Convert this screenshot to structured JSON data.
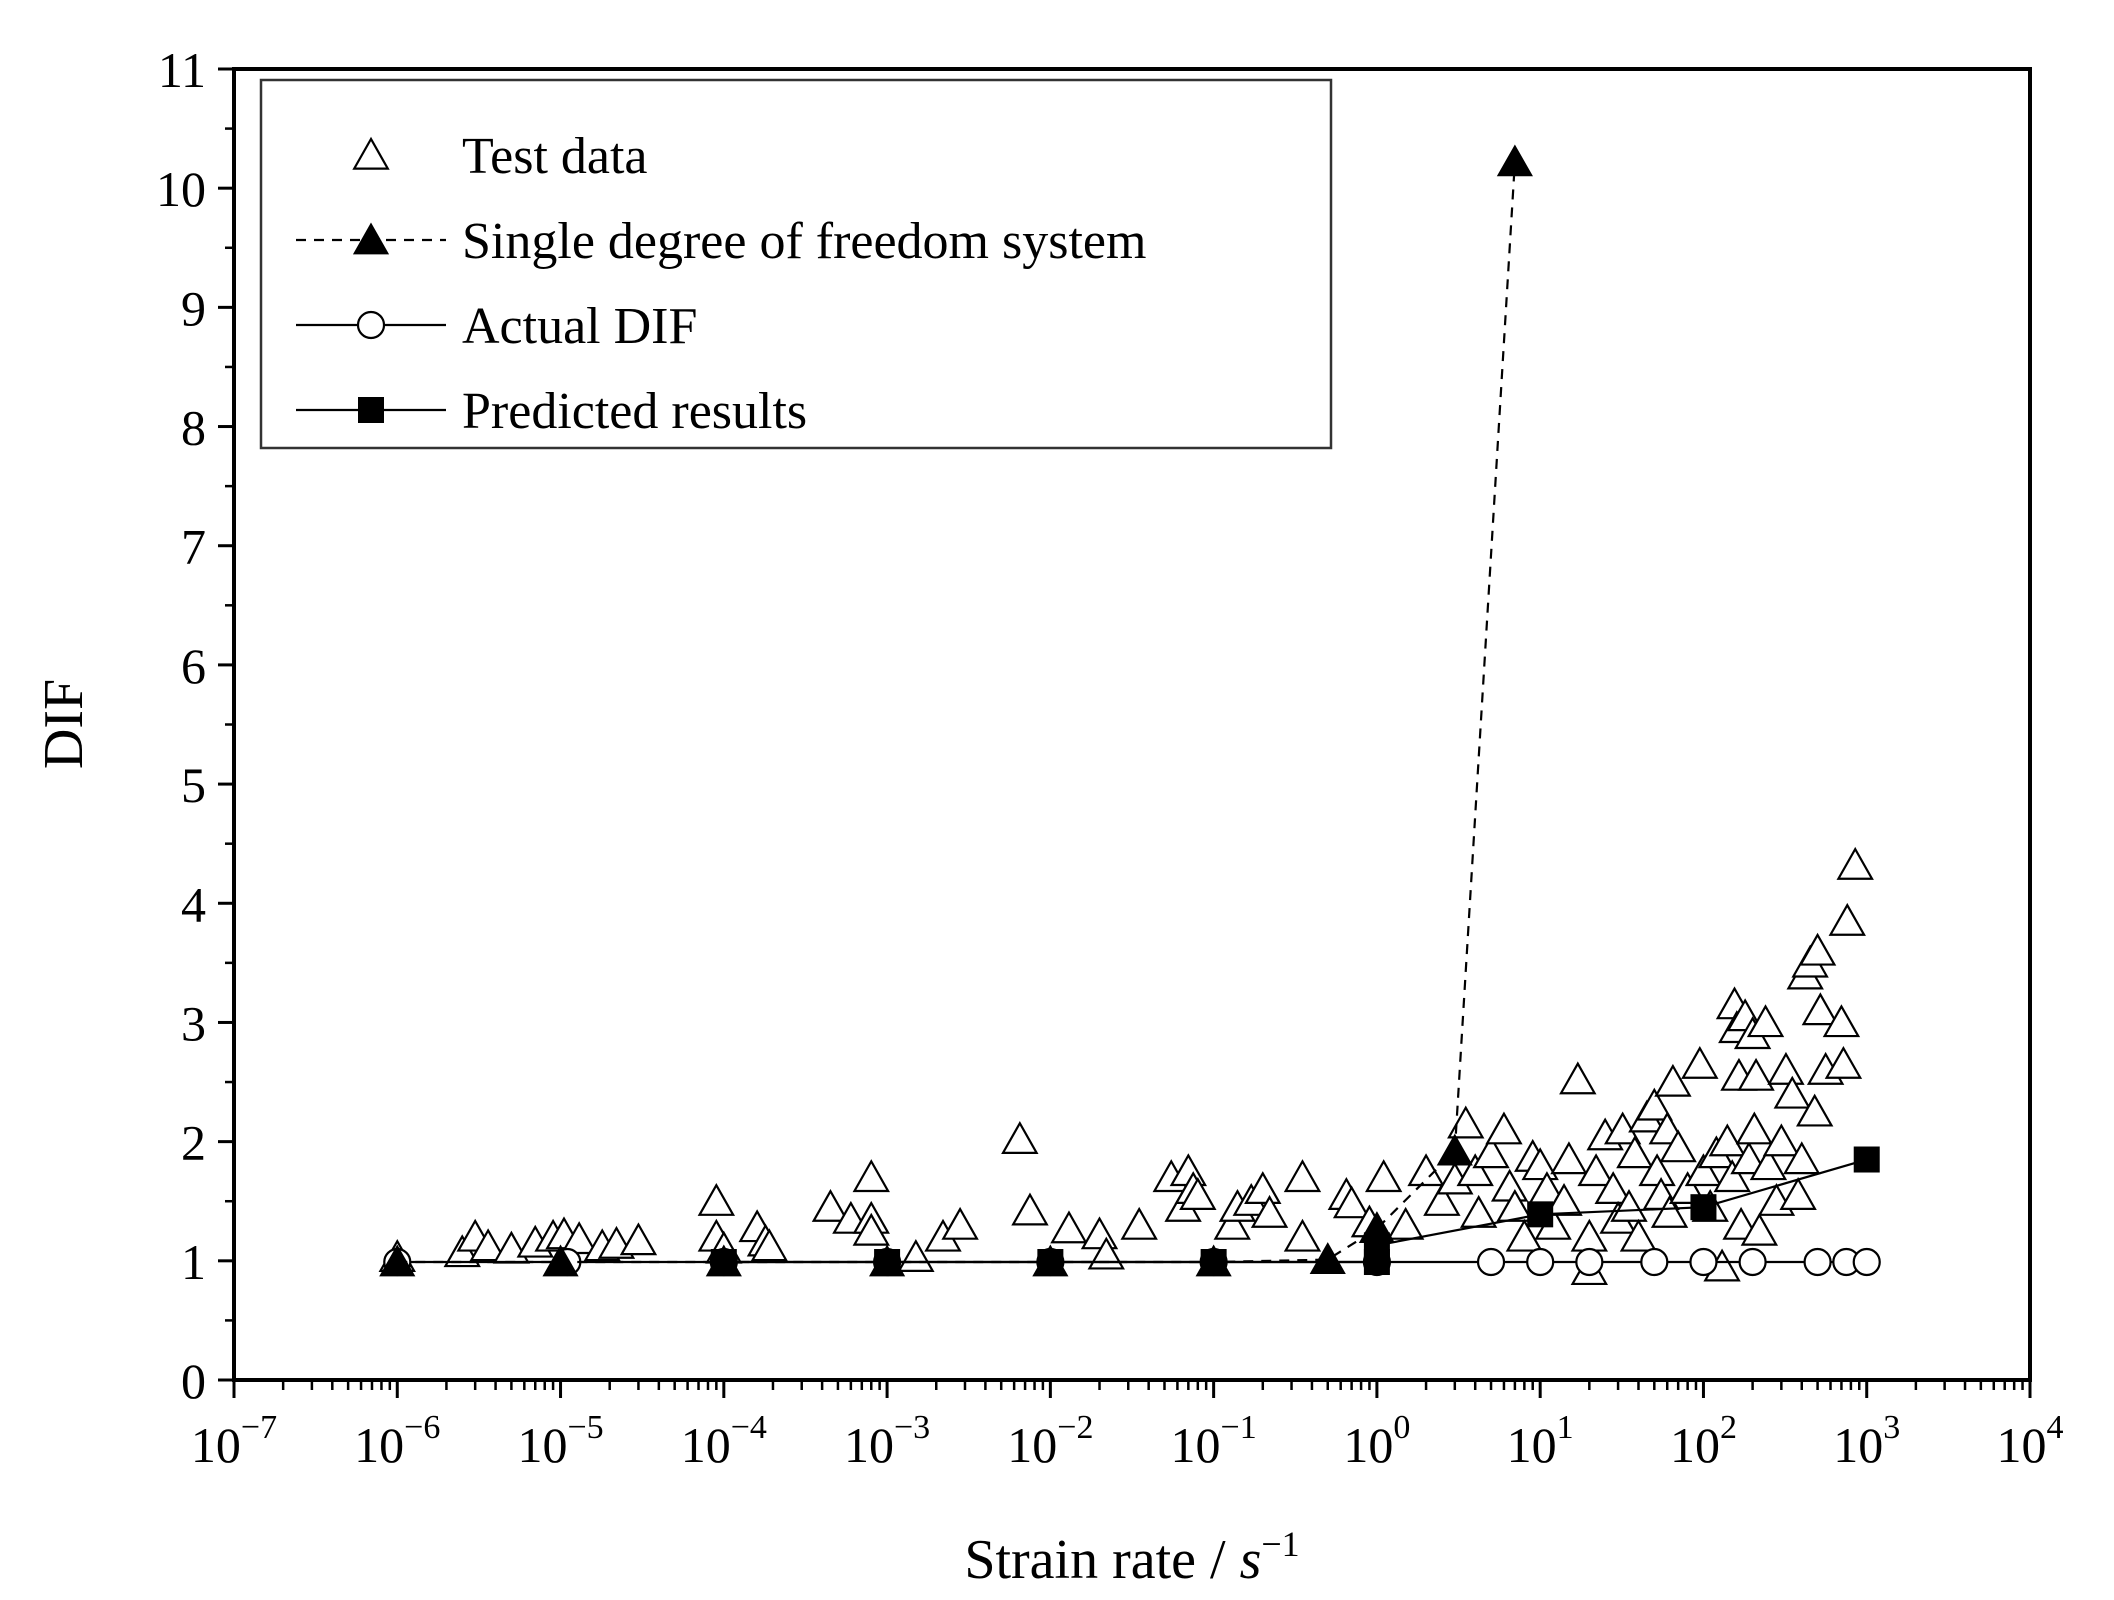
{
  "chart_data": {
    "type": "scatter",
    "title": "",
    "xlabel": "Strain rate / ",
    "xlabel_unit": "s",
    "xlabel_unit_exp": "−1",
    "ylabel": "DIF",
    "x_scale": "log",
    "x_exponent_range": [
      -7,
      4
    ],
    "xlim": [
      1e-07,
      10000
    ],
    "ylim": [
      0,
      11
    ],
    "x_ticks": [
      {
        "base": "10",
        "exp": "−7",
        "value": 1e-07
      },
      {
        "base": "10",
        "exp": "−6",
        "value": 1e-06
      },
      {
        "base": "10",
        "exp": "−5",
        "value": 1e-05
      },
      {
        "base": "10",
        "exp": "−4",
        "value": 0.0001
      },
      {
        "base": "10",
        "exp": "−3",
        "value": 0.001
      },
      {
        "base": "10",
        "exp": "−2",
        "value": 0.01
      },
      {
        "base": "10",
        "exp": "−1",
        "value": 0.1
      },
      {
        "base": "10",
        "exp": "0",
        "value": 1
      },
      {
        "base": "10",
        "exp": "1",
        "value": 10
      },
      {
        "base": "10",
        "exp": "2",
        "value": 100
      },
      {
        "base": "10",
        "exp": "3",
        "value": 1000
      },
      {
        "base": "10",
        "exp": "4",
        "value": 10000
      }
    ],
    "y_ticks": [
      "0",
      "1",
      "2",
      "3",
      "4",
      "5",
      "6",
      "7",
      "8",
      "9",
      "10",
      "11"
    ],
    "legend": {
      "position": "top-left",
      "entries": [
        {
          "label": "Test data",
          "series": "test"
        },
        {
          "label": "Single degree of freedom system",
          "series": "sdof"
        },
        {
          "label": "Actual DIF",
          "series": "actual"
        },
        {
          "label": "Predicted results",
          "series": "predicted"
        }
      ]
    },
    "series": [
      {
        "name": "Test data",
        "marker": "open-triangle",
        "line": "none",
        "points": [
          [
            1e-06,
            1.03
          ],
          [
            2.5e-06,
            1.07
          ],
          [
            3e-06,
            1.2
          ],
          [
            3.6e-06,
            1.12
          ],
          [
            5e-06,
            1.1
          ],
          [
            7e-06,
            1.15
          ],
          [
            9e-06,
            1.2
          ],
          [
            1.05e-05,
            1.22
          ],
          [
            1.3e-05,
            1.18
          ],
          [
            1.8e-05,
            1.12
          ],
          [
            2.2e-05,
            1.14
          ],
          [
            3e-05,
            1.17
          ],
          [
            9e-05,
            1.5
          ],
          [
            9e-05,
            1.2
          ],
          [
            0.0001,
            1.1
          ],
          [
            0.00016,
            1.28
          ],
          [
            0.00018,
            1.16
          ],
          [
            0.00019,
            1.12
          ],
          [
            0.00045,
            1.45
          ],
          [
            0.0006,
            1.35
          ],
          [
            0.0008,
            1.7
          ],
          [
            0.0008,
            1.35
          ],
          [
            0.0008,
            1.25
          ],
          [
            0.0015,
            1.03
          ],
          [
            0.0022,
            1.2
          ],
          [
            0.0028,
            1.3
          ],
          [
            0.0065,
            2.02
          ],
          [
            0.0075,
            1.42
          ],
          [
            0.013,
            1.27
          ],
          [
            0.02,
            1.22
          ],
          [
            0.022,
            1.05
          ],
          [
            0.035,
            1.3
          ],
          [
            0.055,
            1.7
          ],
          [
            0.065,
            1.45
          ],
          [
            0.07,
            1.75
          ],
          [
            0.075,
            1.6
          ],
          [
            0.08,
            1.55
          ],
          [
            0.13,
            1.3
          ],
          [
            0.14,
            1.45
          ],
          [
            0.17,
            1.5
          ],
          [
            0.2,
            1.6
          ],
          [
            0.22,
            1.4
          ],
          [
            0.35,
            1.7
          ],
          [
            0.35,
            1.2
          ],
          [
            0.65,
            1.55
          ],
          [
            0.7,
            1.48
          ],
          [
            0.9,
            1.32
          ],
          [
            1.1,
            1.7
          ],
          [
            1.5,
            1.3
          ],
          [
            2,
            1.75
          ],
          [
            2.5,
            1.5
          ],
          [
            3,
            1.68
          ],
          [
            3.5,
            2.15
          ],
          [
            4,
            1.75
          ],
          [
            4.2,
            1.4
          ],
          [
            5,
            1.9
          ],
          [
            6,
            2.1
          ],
          [
            6.5,
            1.62
          ],
          [
            7,
            1.45
          ],
          [
            8,
            1.2
          ],
          [
            9,
            1.87
          ],
          [
            10,
            1.8
          ],
          [
            11,
            1.6
          ],
          [
            12,
            1.3
          ],
          [
            14,
            1.5
          ],
          [
            15,
            1.85
          ],
          [
            17,
            2.52
          ],
          [
            20,
            1.2
          ],
          [
            20,
            0.92
          ],
          [
            22,
            1.75
          ],
          [
            25,
            2.05
          ],
          [
            28,
            1.6
          ],
          [
            30,
            1.35
          ],
          [
            32,
            2.1
          ],
          [
            35,
            1.45
          ],
          [
            38,
            1.9
          ],
          [
            40,
            1.2
          ],
          [
            45,
            2.2
          ],
          [
            50,
            2.3
          ],
          [
            52,
            1.75
          ],
          [
            55,
            1.55
          ],
          [
            60,
            2.1
          ],
          [
            62,
            1.4
          ],
          [
            65,
            2.5
          ],
          [
            70,
            1.95
          ],
          [
            80,
            1.6
          ],
          [
            95,
            2.65
          ],
          [
            100,
            1.75
          ],
          [
            110,
            1.45
          ],
          [
            120,
            1.9
          ],
          [
            130,
            0.95
          ],
          [
            140,
            2.0
          ],
          [
            150,
            1.7
          ],
          [
            155,
            3.15
          ],
          [
            160,
            2.95
          ],
          [
            165,
            2.55
          ],
          [
            170,
            1.3
          ],
          [
            180,
            3.05
          ],
          [
            190,
            1.85
          ],
          [
            200,
            2.9
          ],
          [
            205,
            2.1
          ],
          [
            210,
            2.55
          ],
          [
            220,
            1.25
          ],
          [
            240,
            3.0
          ],
          [
            250,
            1.8
          ],
          [
            280,
            1.5
          ],
          [
            300,
            2.0
          ],
          [
            320,
            2.6
          ],
          [
            350,
            2.4
          ],
          [
            380,
            1.55
          ],
          [
            400,
            1.85
          ],
          [
            420,
            3.4
          ],
          [
            450,
            3.5
          ],
          [
            480,
            2.25
          ],
          [
            500,
            3.6
          ],
          [
            520,
            3.1
          ],
          [
            560,
            2.6
          ],
          [
            700,
            3.0
          ],
          [
            720,
            2.65
          ],
          [
            760,
            3.85
          ],
          [
            850,
            4.32
          ]
        ]
      },
      {
        "name": "Single degree of freedom system",
        "marker": "filled-triangle",
        "line": "dashed",
        "points": [
          [
            1e-06,
            0.99
          ],
          [
            1e-05,
            0.99
          ],
          [
            0.0001,
            0.99
          ],
          [
            0.001,
            0.99
          ],
          [
            0.01,
            0.99
          ],
          [
            0.1,
            0.99
          ],
          [
            0.5,
            1.01
          ],
          [
            1,
            1.27
          ],
          [
            3,
            1.92
          ],
          [
            7,
            10.22
          ]
        ]
      },
      {
        "name": "Actual DIF",
        "marker": "open-circle",
        "line": "solid",
        "points": [
          [
            1e-06,
            0.99
          ],
          [
            1.1e-05,
            0.99
          ],
          [
            0.0001,
            0.99
          ],
          [
            0.001,
            0.99
          ],
          [
            0.01,
            0.99
          ],
          [
            0.1,
            0.99
          ],
          [
            1,
            0.99
          ],
          [
            5,
            0.99
          ],
          [
            10,
            0.99
          ],
          [
            20,
            0.99
          ],
          [
            50,
            0.99
          ],
          [
            100,
            0.99
          ],
          [
            200,
            0.99
          ],
          [
            500,
            0.99
          ],
          [
            750,
            0.99
          ],
          [
            1000,
            0.99
          ]
        ]
      },
      {
        "name": "Predicted results",
        "marker": "filled-square",
        "line": "solid",
        "points": [
          [
            0.0001,
            0.99
          ],
          [
            0.001,
            0.99
          ],
          [
            0.01,
            0.99
          ],
          [
            0.1,
            0.99
          ],
          [
            1,
            0.99
          ],
          [
            1,
            1.13
          ],
          [
            10,
            1.39
          ],
          [
            100,
            1.45
          ],
          [
            1000,
            1.85
          ]
        ]
      }
    ]
  }
}
